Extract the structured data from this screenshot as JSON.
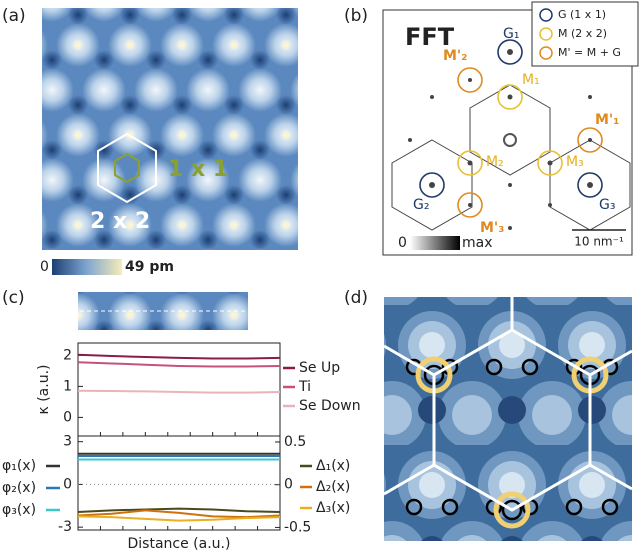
{
  "panel_labels": [
    "(a)",
    "(b)",
    "(c)",
    "(d)"
  ],
  "panel_a": {
    "overlay_small": "1 x 1",
    "overlay_large": "2 x 2",
    "colorbar_min": "0",
    "colorbar_max": "49 pm"
  },
  "panel_b": {
    "title": "FFT",
    "legend": [
      "G (1 x 1)",
      "M (2 x 2)",
      "M' = M + G"
    ],
    "spot_labels": [
      "G₁",
      "G₂",
      "G₃",
      "M₁",
      "M₂",
      "M₃",
      "M'₁",
      "M'₂",
      "M'₃"
    ],
    "colorbar_min": "0",
    "colorbar_max": "max",
    "scale_bar": "10 nm⁻¹"
  },
  "chart_data": [
    {
      "type": "line",
      "ylabel": "κ (a.u.)",
      "ylim": [
        -0.6,
        2.4
      ],
      "yticks": [
        0,
        1,
        2
      ],
      "series": [
        {
          "name": "Se Up",
          "color": "#8b1d45",
          "values": [
            2.02,
            1.98,
            1.95,
            1.92,
            1.9,
            1.9,
            1.92
          ]
        },
        {
          "name": "Ti",
          "color": "#c8507e",
          "values": [
            1.78,
            1.74,
            1.7,
            1.66,
            1.64,
            1.64,
            1.66
          ]
        },
        {
          "name": "Se Down",
          "color": "#e8b4bc",
          "values": [
            0.86,
            0.85,
            0.84,
            0.82,
            0.8,
            0.8,
            0.82
          ]
        }
      ]
    },
    {
      "type": "line",
      "xlabel": "Distance (a.u.)",
      "ylim": [
        -3.2,
        3.4
      ],
      "yticks": [
        -3,
        0,
        3
      ],
      "y2lim": [
        -0.53,
        0.57
      ],
      "y2ticks": [
        -0.5,
        0,
        0.5
      ],
      "series": [
        {
          "name": "φ₁(x)",
          "color": "#333333",
          "values": [
            2.15,
            2.15,
            2.15,
            2.15,
            2.15,
            2.15,
            2.15
          ]
        },
        {
          "name": "φ₂(x)",
          "color": "#2a78b8",
          "values": [
            2.0,
            2.0,
            2.0,
            2.0,
            2.0,
            2.0,
            2.0
          ]
        },
        {
          "name": "φ₃(x)",
          "color": "#3cc8c8",
          "values": [
            1.75,
            1.75,
            1.75,
            1.75,
            1.75,
            1.75,
            1.75
          ]
        },
        {
          "name": "Δ₁(x)",
          "color": "#4a4a1c",
          "axis": "y2",
          "values": [
            -0.32,
            -0.3,
            -0.29,
            -0.28,
            -0.29,
            -0.31,
            -0.32
          ]
        },
        {
          "name": "Δ₂(x)",
          "color": "#d07010",
          "axis": "y2",
          "values": [
            -0.36,
            -0.34,
            -0.3,
            -0.33,
            -0.37,
            -0.38,
            -0.36
          ]
        },
        {
          "name": "Δ₃(x)",
          "color": "#e8b020",
          "axis": "y2",
          "values": [
            -0.37,
            -0.38,
            -0.4,
            -0.42,
            -0.41,
            -0.39,
            -0.38
          ]
        }
      ]
    }
  ]
}
